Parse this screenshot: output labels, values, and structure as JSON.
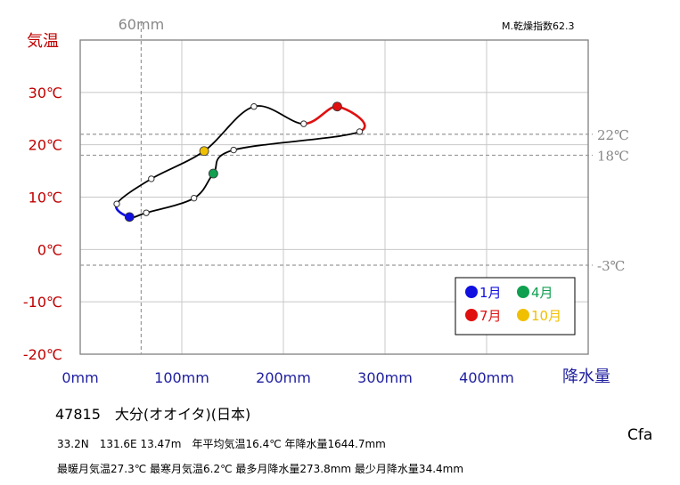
{
  "chart_data": {
    "type": "line",
    "title": "",
    "xlabel": "降水量",
    "ylabel": "気温",
    "xlim": [
      0,
      500
    ],
    "ylim": [
      -20,
      40
    ],
    "x_ticks": [
      "0mm",
      "100mm",
      "200mm",
      "300mm",
      "400mm"
    ],
    "y_ticks": [
      "30℃",
      "20℃",
      "10℃",
      "0℃",
      "-10℃",
      "-20℃"
    ],
    "grid": true,
    "series": [
      {
        "months": [
          1,
          2,
          3,
          4,
          5,
          6,
          7,
          8,
          9,
          10,
          11,
          12
        ],
        "x": [
          48.5,
          65,
          112,
          131,
          151,
          275,
          253,
          220,
          171,
          122,
          70,
          36
        ],
        "y": [
          6.2,
          7.0,
          9.8,
          14.5,
          19.0,
          22.5,
          27.3,
          24.0,
          27.3,
          18.8,
          13.5,
          8.7
        ]
      }
    ],
    "reference_lines": {
      "vertical": [
        {
          "value": 60,
          "label": "60mm"
        }
      ],
      "horizontal": [
        {
          "value": 22,
          "label": "22℃"
        },
        {
          "value": 18,
          "label": "18℃"
        },
        {
          "value": -3,
          "label": "-3℃"
        }
      ]
    },
    "legend": {
      "placement": "bottom-right",
      "entries": [
        {
          "label": "1月",
          "color": "#1010e0"
        },
        {
          "label": "4月",
          "color": "#10a050"
        },
        {
          "label": "7月",
          "color": "#e01010"
        },
        {
          "label": "10月",
          "color": "#f0c000"
        }
      ]
    },
    "colors": {
      "temperature_axis": "#c00000",
      "precipitation_axis": "#2020a0",
      "jan_segment": "#1010e0",
      "jul_segment": "#e01010",
      "reference": "#999999"
    }
  },
  "info": {
    "station": "47815　大分(オオイタ)(日本)",
    "line1": "33.2N　131.6E 13.47m　年平均気温16.4℃ 年降水量1644.7mm",
    "line2": "最暖月気温27.3℃ 最寒月気温6.2℃ 最多月降水量273.8mm 最少月降水量34.4mm",
    "koppen": "Cfa",
    "dryness": "M.乾燥指数62.3"
  }
}
